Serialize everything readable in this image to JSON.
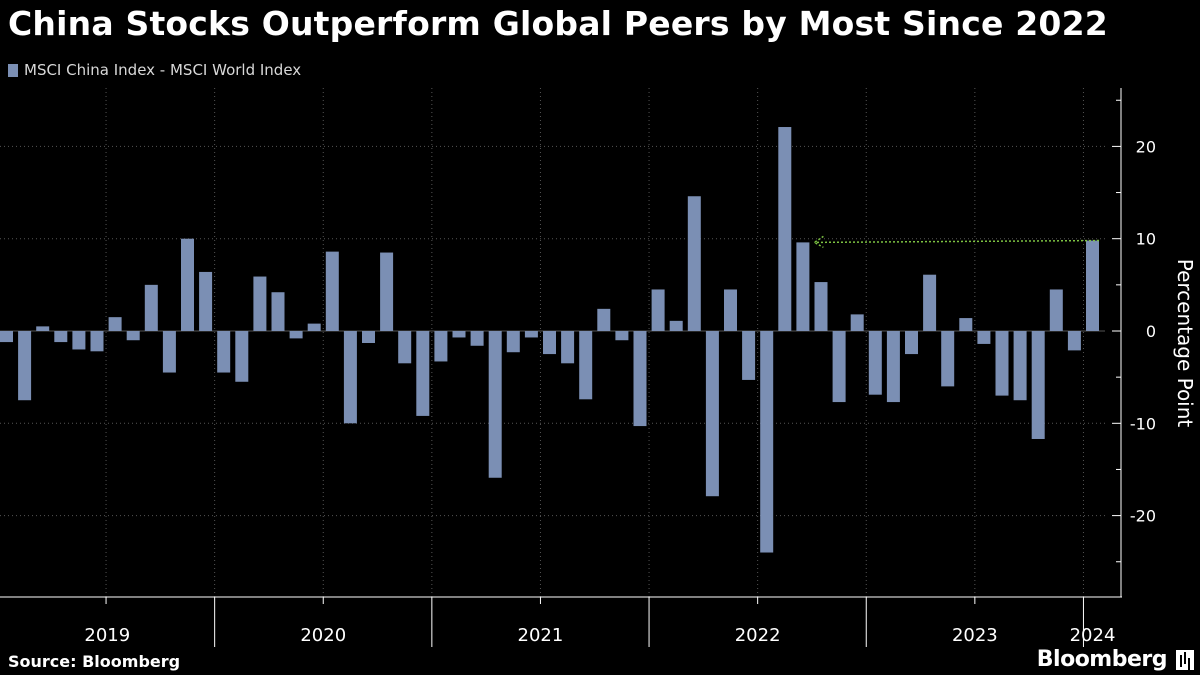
{
  "title": "China Stocks Outperform Global Peers by Most Since 2022",
  "source": "Source: Bloomberg",
  "brand": "Bloomberg",
  "chart_data": {
    "type": "bar",
    "title": "China Stocks Outperform Global Peers by Most Since 2022",
    "series": [
      {
        "name": "MSCI China Index - MSCI World Index",
        "color": "#7b8fb4",
        "values": [
          -1.2,
          -7.5,
          0.5,
          -1.2,
          -2.0,
          -2.2,
          1.5,
          -1.0,
          5.0,
          -4.5,
          10.0,
          6.4,
          -4.5,
          -5.5,
          5.9,
          4.2,
          -0.8,
          0.8,
          8.6,
          -10.0,
          -1.3,
          8.5,
          -3.5,
          -9.2,
          -3.3,
          -0.7,
          -1.6,
          -15.9,
          -2.3,
          -0.7,
          -2.5,
          -3.5,
          -7.4,
          2.4,
          -1.0,
          -10.3,
          4.5,
          1.1,
          14.6,
          -17.9,
          4.5,
          -5.3,
          -24.0,
          22.1,
          9.6,
          5.3,
          -7.7,
          1.8,
          -6.9,
          -7.7,
          -2.5,
          6.1,
          -6.0,
          1.4,
          -1.4,
          -7.0,
          -7.5,
          -11.7,
          4.5,
          -2.1,
          9.8
        ]
      }
    ],
    "x_start": "2019-01",
    "frequency": "monthly",
    "year_labels": [
      "2019",
      "2020",
      "2021",
      "2022",
      "2023",
      "2024"
    ],
    "y_ticks": [
      "-20",
      "-10",
      "0",
      "10",
      "20"
    ],
    "ylabel": "Percentage Point",
    "ylim": [
      -27,
      26
    ],
    "annotation": "arrow from latest bar back to the 2022 peak level",
    "grid": true,
    "legend": "top-left",
    "axis_color": "#ffffff",
    "grid_color": "#555555",
    "arrow_color": "#7cc242",
    "background": "#000000"
  }
}
